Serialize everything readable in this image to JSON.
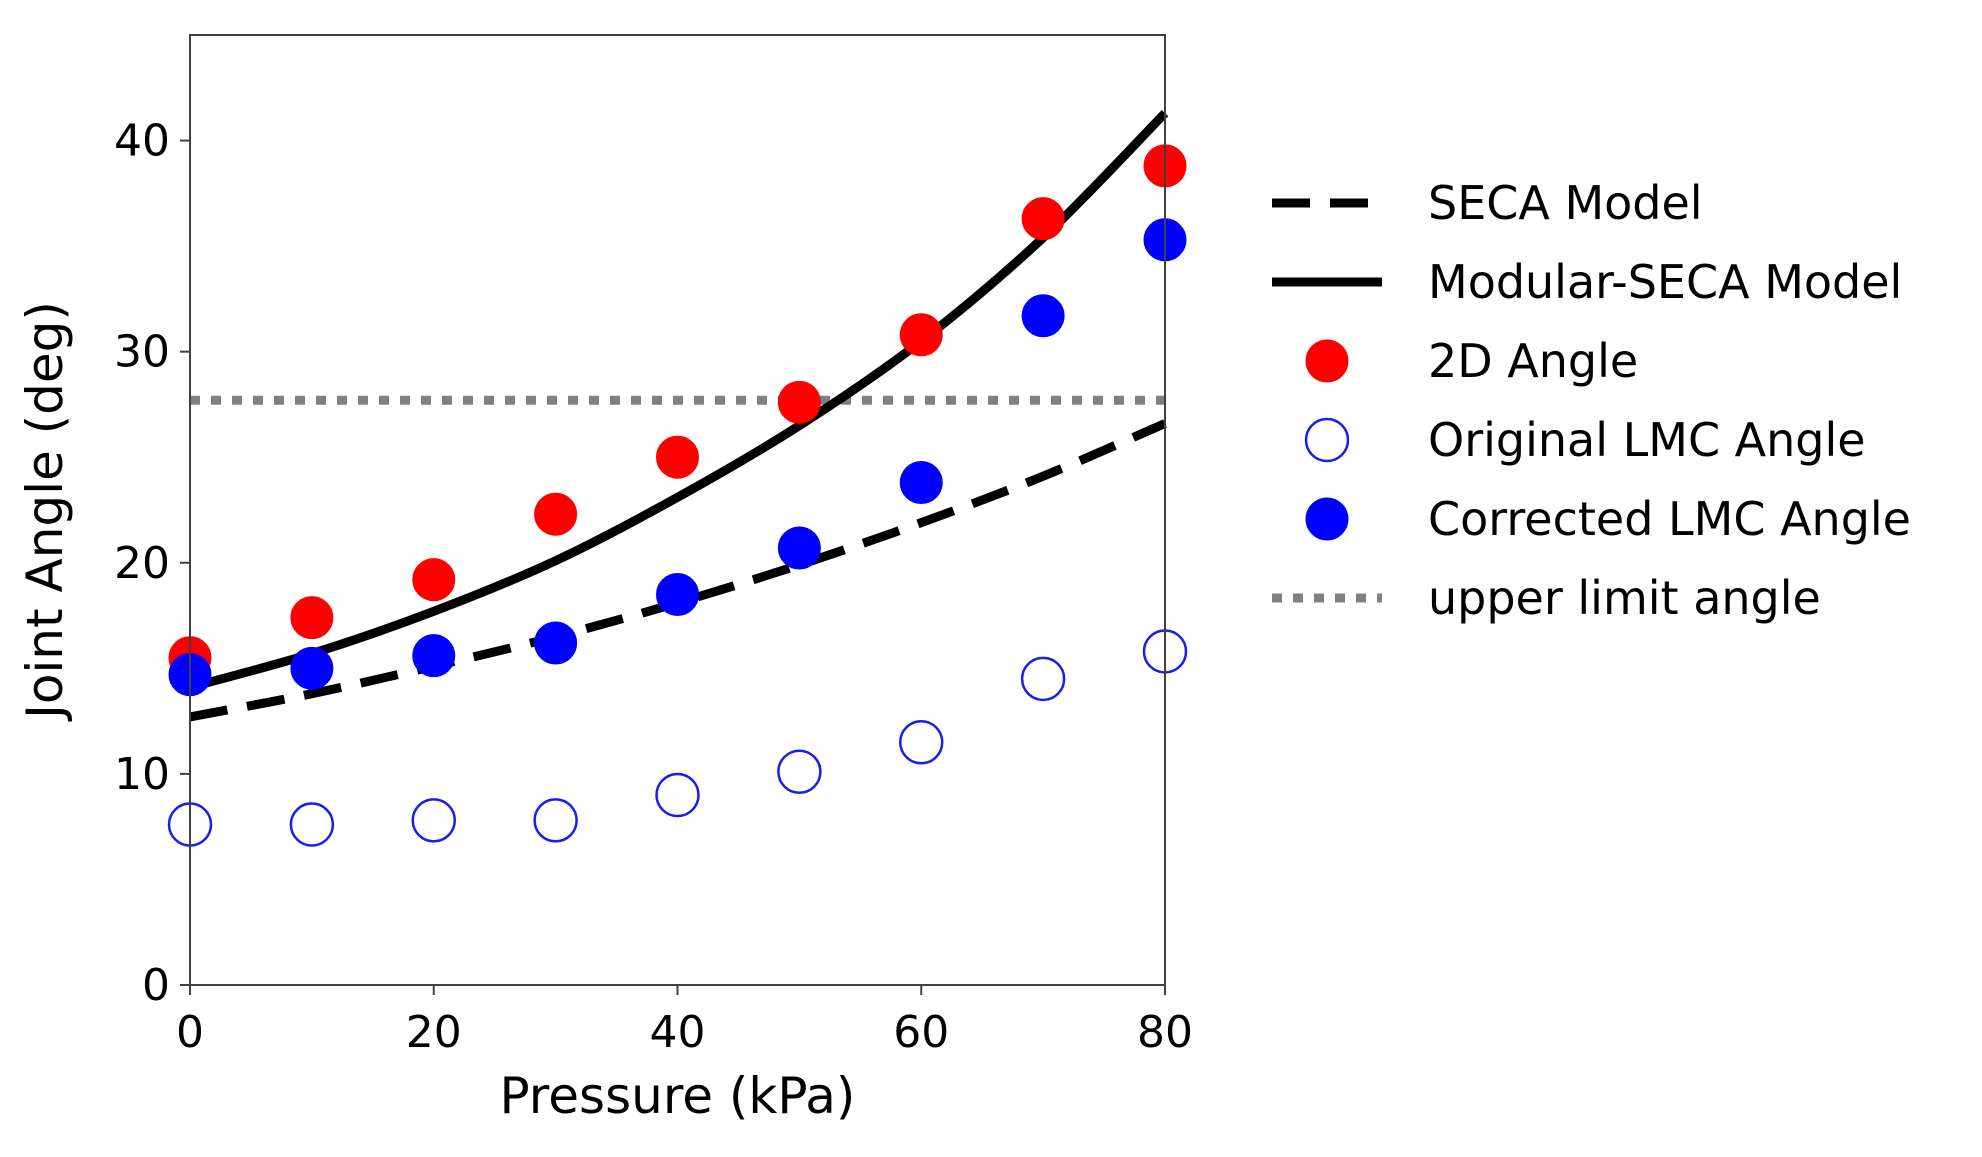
{
  "chart_data": {
    "type": "scatter",
    "title": "",
    "xlabel": "Pressure (kPa)",
    "ylabel": "Joint Angle (deg)",
    "xlim": [
      0,
      80
    ],
    "ylim": [
      0,
      45
    ],
    "xticks": [
      0,
      20,
      40,
      60,
      80
    ],
    "yticks": [
      0,
      10,
      20,
      30,
      40
    ],
    "grid": false,
    "legend_position": "right",
    "series": [
      {
        "name": "SECA Model",
        "kind": "line",
        "style": "dashed",
        "color": "#000000",
        "x": [
          0,
          10,
          20,
          30,
          40,
          50,
          60,
          70,
          80
        ],
        "y": [
          12.7,
          13.8,
          15.1,
          16.5,
          18.1,
          19.9,
          21.9,
          24.1,
          26.6
        ]
      },
      {
        "name": "Modular-SECA Model",
        "kind": "line",
        "style": "solid",
        "color": "#000000",
        "x": [
          0,
          10,
          20,
          30,
          40,
          50,
          60,
          70,
          80
        ],
        "y": [
          14.1,
          15.7,
          17.7,
          20.1,
          23.1,
          26.5,
          30.5,
          35.4,
          41.3
        ]
      },
      {
        "name": "2D Angle",
        "kind": "marker",
        "fill": "#ff0000",
        "stroke": "#ff0000",
        "x": [
          0,
          10,
          20,
          30,
          40,
          50,
          60,
          70,
          80
        ],
        "y": [
          15.5,
          17.4,
          19.2,
          22.3,
          25.0,
          27.6,
          30.8,
          36.3,
          38.8
        ]
      },
      {
        "name": "Original LMC Angle",
        "kind": "marker",
        "fill": "none",
        "stroke": "#1c1cf0",
        "x": [
          0,
          10,
          20,
          30,
          40,
          50,
          60,
          70,
          80
        ],
        "y": [
          7.6,
          7.6,
          7.8,
          7.8,
          9.0,
          10.1,
          11.5,
          14.5,
          15.8
        ]
      },
      {
        "name": "Corrected LMC Angle",
        "kind": "marker",
        "fill": "#0000ff",
        "stroke": "#0000ff",
        "x": [
          0,
          10,
          20,
          30,
          40,
          50,
          60,
          70,
          80
        ],
        "y": [
          14.7,
          15.0,
          15.6,
          16.2,
          18.5,
          20.7,
          23.8,
          31.7,
          35.3
        ]
      },
      {
        "name": "upper limit angle",
        "kind": "hline",
        "style": "dotted",
        "color": "#808080",
        "y_value": 27.7
      }
    ]
  }
}
